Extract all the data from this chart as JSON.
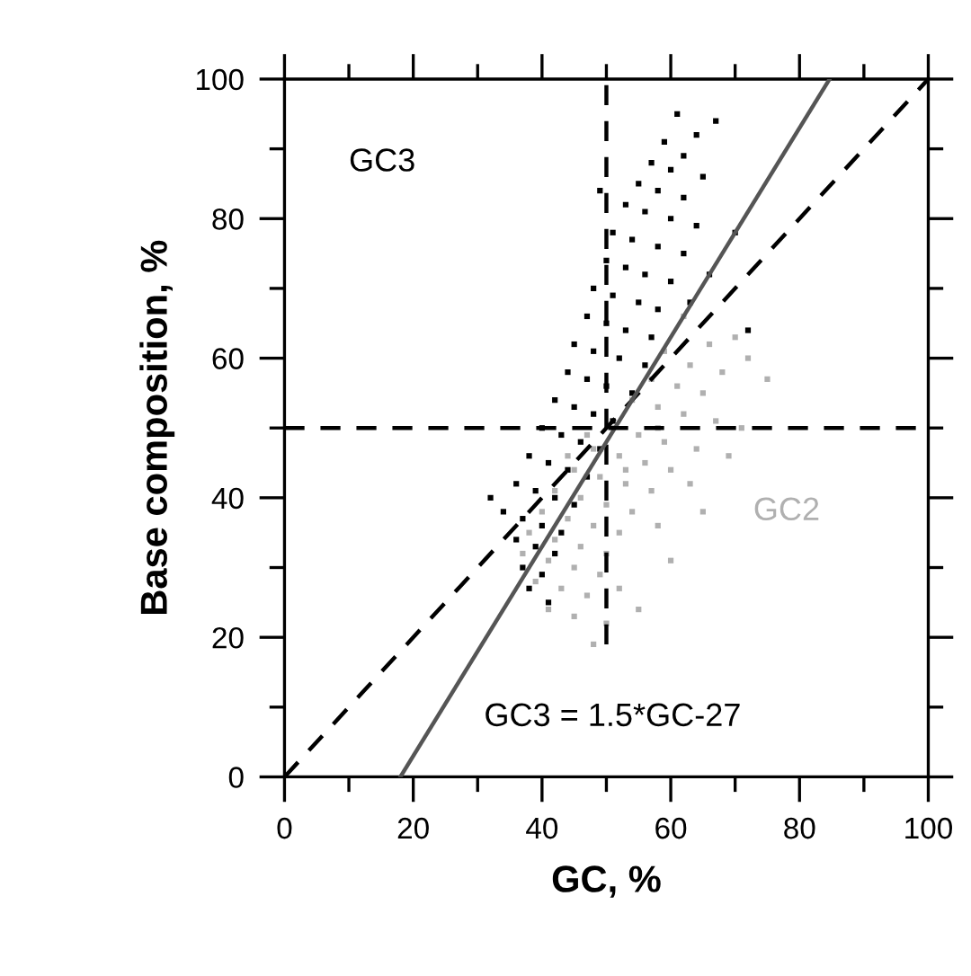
{
  "chart_data": {
    "type": "scatter",
    "xlabel": "GC, %",
    "ylabel": "Base composition, %",
    "xlim": [
      0,
      100
    ],
    "ylim": [
      0,
      100
    ],
    "xticks": [
      0,
      20,
      40,
      60,
      80,
      100
    ],
    "yticks": [
      0,
      20,
      40,
      60,
      80,
      100
    ],
    "grid": false,
    "legend": false,
    "annotations": [
      "GC3 = 1.5*GC-27"
    ],
    "ref_lines": [
      {
        "axis": "y",
        "value": 50,
        "color": "#000000",
        "line_style": "dashed"
      }
    ],
    "series": [
      {
        "name": "GC3",
        "color": "#000000",
        "marker": "square",
        "x": [
          61,
          67,
          64,
          59,
          62,
          57,
          60,
          65,
          55,
          58,
          62,
          53,
          56,
          60,
          64,
          51,
          54,
          58,
          62,
          50,
          53,
          56,
          60,
          66,
          48,
          51,
          55,
          58,
          47,
          50,
          53,
          57,
          45,
          48,
          52,
          56,
          44,
          47,
          50,
          54,
          42,
          45,
          48,
          51,
          40,
          43,
          46,
          49,
          38,
          41,
          44,
          47,
          36,
          39,
          42,
          45,
          34,
          37,
          40,
          43,
          36,
          39,
          42,
          37,
          40,
          38,
          41,
          70,
          72,
          32,
          63,
          49
        ],
        "values": [
          95,
          94,
          92,
          91,
          89,
          88,
          87,
          86,
          85,
          84,
          83,
          82,
          81,
          80,
          79,
          78,
          77,
          76,
          75,
          74,
          73,
          72,
          71,
          72,
          70,
          69,
          68,
          67,
          66,
          65,
          64,
          63,
          62,
          61,
          60,
          59,
          58,
          57,
          56,
          55,
          54,
          53,
          52,
          51,
          50,
          49,
          48,
          47,
          46,
          45,
          44,
          43,
          42,
          41,
          40,
          39,
          38,
          37,
          36,
          35,
          34,
          33,
          32,
          30,
          29,
          27,
          25,
          78,
          64,
          40,
          68,
          84
        ]
      },
      {
        "name": "GC2",
        "color": "#b0b0b0",
        "marker": "square",
        "x": [
          62,
          70,
          66,
          59,
          72,
          63,
          68,
          57,
          75,
          61,
          65,
          54,
          58,
          62,
          67,
          51,
          55,
          59,
          64,
          69,
          48,
          52,
          56,
          60,
          45,
          49,
          53,
          57,
          63,
          42,
          46,
          50,
          54,
          40,
          44,
          48,
          52,
          58,
          38,
          42,
          46,
          50,
          37,
          41,
          45,
          49,
          39,
          43,
          47,
          52,
          41,
          45,
          50,
          48,
          55,
          60,
          65,
          71,
          44,
          47,
          53,
          58
        ],
        "values": [
          66,
          63,
          62,
          61,
          60,
          59,
          58,
          57,
          57,
          56,
          55,
          54,
          53,
          52,
          51,
          50,
          49,
          48,
          47,
          46,
          47,
          46,
          45,
          44,
          44,
          43,
          42,
          41,
          42,
          41,
          40,
          39,
          38,
          38,
          37,
          36,
          35,
          36,
          35,
          34,
          33,
          32,
          32,
          31,
          30,
          29,
          28,
          27,
          26,
          27,
          24,
          23,
          22,
          19,
          24,
          31,
          38,
          50,
          46,
          49,
          44,
          50
        ]
      },
      {
        "type": "line",
        "line_style": "dashed",
        "color": "#000000",
        "x": [
          0,
          100
        ],
        "values": [
          0,
          100
        ]
      },
      {
        "type": "line",
        "line_style": "dashed",
        "color": "#000000",
        "x": [
          50,
          50
        ],
        "values": [
          19,
          100
        ]
      },
      {
        "type": "line",
        "line_style": "solid",
        "color": "#555555",
        "x": [
          18,
          84.67
        ],
        "values": [
          0,
          100
        ]
      }
    ]
  }
}
